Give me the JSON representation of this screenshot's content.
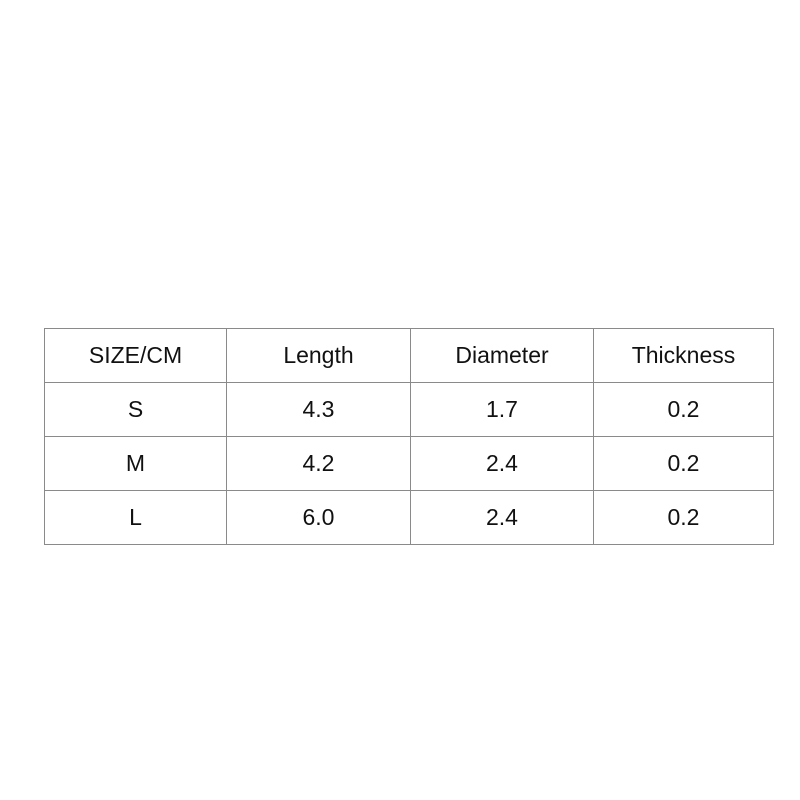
{
  "table": {
    "headers": [
      "SIZE/CM",
      "Length",
      "Diameter",
      "Thickness"
    ],
    "rows": [
      [
        "S",
        "4.3",
        "1.7",
        "0.2"
      ],
      [
        "M",
        "4.2",
        "2.4",
        "0.2"
      ],
      [
        "L",
        "6.0",
        "2.4",
        "0.2"
      ]
    ]
  }
}
